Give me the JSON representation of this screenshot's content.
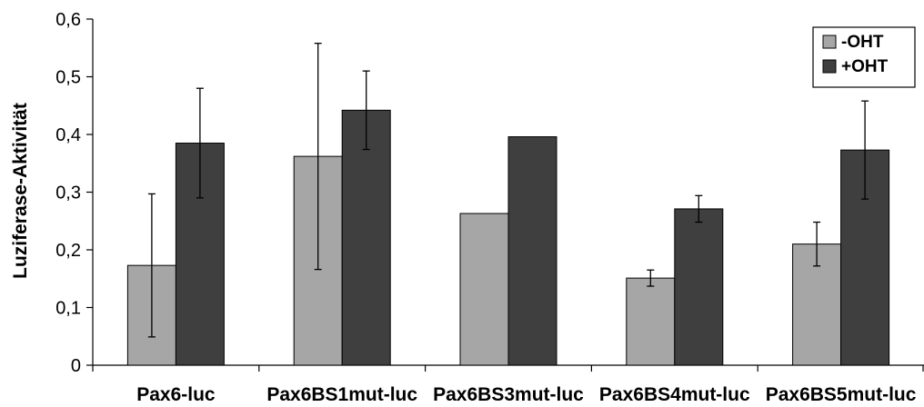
{
  "chart_data": {
    "type": "bar",
    "title": "",
    "xlabel": "",
    "ylabel": "Luziferase-Aktivität",
    "ylim": [
      0,
      0.6
    ],
    "yticks": [
      "0",
      "0,1",
      "0,2",
      "0,3",
      "0,4",
      "0,5",
      "0,6"
    ],
    "categories": [
      "Pax6-luc",
      "Pax6BS1mut-luc",
      "Pax6BS3mut-luc",
      "Pax6BS4mut-luc",
      "Pax6BS5mut-luc"
    ],
    "series": [
      {
        "name": "-OHT",
        "color": "#a6a6a6",
        "values": [
          0.173,
          0.362,
          0.263,
          0.151,
          0.21
        ],
        "errors": [
          0.124,
          0.196,
          0,
          0.014,
          0.038
        ]
      },
      {
        "name": "+OHT",
        "color": "#3f3f3f",
        "values": [
          0.385,
          0.442,
          0.396,
          0.271,
          0.373
        ],
        "errors": [
          0.095,
          0.068,
          0,
          0.023,
          0.085
        ]
      }
    ],
    "grid": false,
    "legend_position": "top-right"
  }
}
